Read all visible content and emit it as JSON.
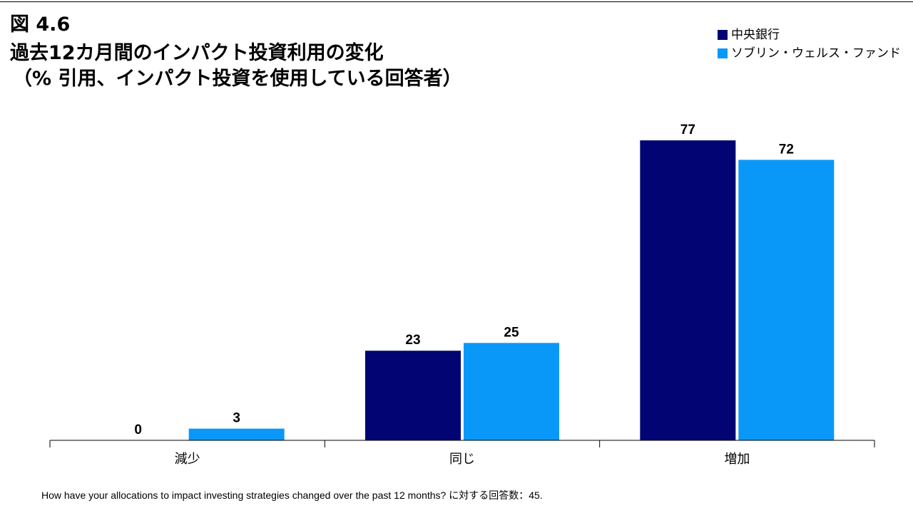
{
  "header": {
    "figure_number": "図 4.6",
    "title_line1": "過去12カ月間のインパクト投資利用の変化",
    "title_line2": "（% 引用、インパクト投資を使用している回答者）"
  },
  "colors": {
    "central_banks": "#010472",
    "sovereign_wealth_funds": "#0a98f8",
    "axis": "#000000",
    "text": "#000000"
  },
  "chart_data": {
    "type": "bar",
    "title": "過去12カ月間のインパクト投資利用の変化",
    "subtitle": "（% 引用、インパクト投資を使用している回答者）",
    "xlabel": "",
    "ylabel": "",
    "categories": [
      "減少",
      "同じ",
      "増加"
    ],
    "series": [
      {
        "name": "中央銀行",
        "values": [
          0,
          23,
          77
        ]
      },
      {
        "name": "ソブリン・ウェルス・ファンド",
        "values": [
          3,
          25,
          72
        ]
      }
    ],
    "ylim": [
      0,
      80
    ],
    "grid": false,
    "data_labels": true,
    "legend_position": "top-right"
  },
  "footnote": "How have your allocations to impact investing strategies changed over the past 12 months? に対する回答数：45."
}
